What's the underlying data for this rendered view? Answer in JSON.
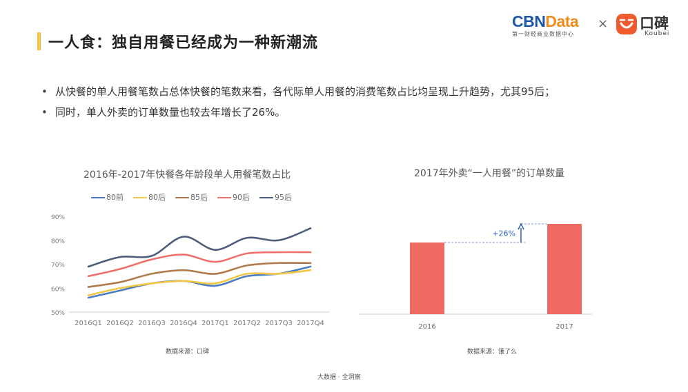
{
  "header": {
    "title": "一人食：独自用餐已经成为一种新潮流",
    "brand_cbn_left": "CBN",
    "brand_cbn_right": "Data",
    "brand_cbn_sub": "第一财经商业数据中心",
    "times": "×",
    "brand_koubei": "口碑",
    "brand_koubei_sub": "Koubei"
  },
  "bullets": [
    "从快餐的单人用餐笔数占总体快餐的笔数来看，各代际单人用餐的消费笔数占比均呈现上升趋势，尤其95后；",
    "同时，单人外卖的订单数量也较去年增长了26%。"
  ],
  "bullet_symbol": "•",
  "chart_data": [
    {
      "type": "line",
      "title": "2016年-2017年快餐各年龄段单人用餐笔数占比",
      "categories": [
        "2016Q1",
        "2016Q2",
        "2016Q3",
        "2016Q4",
        "2017Q1",
        "2017Q2",
        "2017Q3",
        "2017Q4"
      ],
      "yticks": [
        "50%",
        "60%",
        "70%",
        "80%",
        "90%"
      ],
      "ylim": [
        50,
        90
      ],
      "grid": false,
      "legend_position": "top",
      "series": [
        {
          "name": "80前",
          "color": "#4a7cc4",
          "values": [
            56,
            59,
            62,
            63,
            61,
            65,
            66,
            69
          ]
        },
        {
          "name": "80后",
          "color": "#f2c744",
          "values": [
            57,
            60,
            62,
            63,
            62,
            66,
            66,
            67.5
          ]
        },
        {
          "name": "85后",
          "color": "#b07a4a",
          "values": [
            60.5,
            62.5,
            66,
            67.5,
            66,
            69.5,
            70.5,
            70.5
          ]
        },
        {
          "name": "90后",
          "color": "#ef6f6a",
          "values": [
            65,
            68,
            72,
            74,
            71,
            74.5,
            75,
            75
          ]
        },
        {
          "name": "95后",
          "color": "#4d5d7c",
          "values": [
            69,
            73,
            73.5,
            81.5,
            76,
            81,
            80,
            85
          ]
        }
      ],
      "source": "数据来源：口碑"
    },
    {
      "type": "bar",
      "title": "2017年外卖“一人用餐”的订单数量",
      "categories": [
        "2016",
        "2017"
      ],
      "values": [
        100,
        126
      ],
      "bar_color": "#ee6a62",
      "annotation": "+26%",
      "source": "数据来源：饿了么"
    }
  ],
  "footer": "大数据 · 全洞察"
}
